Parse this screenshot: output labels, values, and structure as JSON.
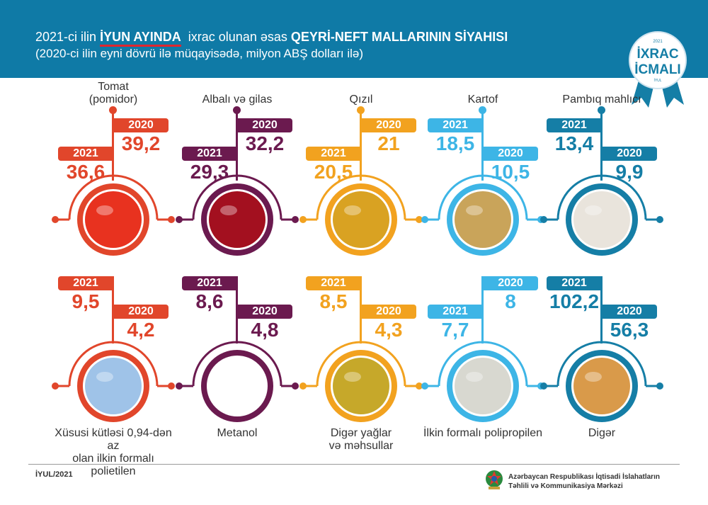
{
  "header": {
    "title_part1": "2021-ci ilin",
    "title_highlight": "İYUN AYINDA",
    "title_part2": "ixrac olunan əsas",
    "title_bold": "QEYRİ-NEFT MALLARININ SİYAHISI",
    "subtitle": "(2020-ci ilin eyni dövrü ilə müqayisədə, milyon ABŞ dolları ilə)",
    "background": "#0f7aa6"
  },
  "badge": {
    "year": "2021",
    "line1": "İXRAC",
    "line2": "İCMALI",
    "month": "İYUL"
  },
  "year_labels": {
    "current": "2021",
    "previous": "2020"
  },
  "items": [
    {
      "name": "Tomat (pomidor)",
      "name_lines": [
        "Tomat",
        "(pomidor)"
      ],
      "v2021": "36,6",
      "v2020": "39,2",
      "color": "#e1462b",
      "image": "tomato",
      "image_color": "#e8321f",
      "row": 1
    },
    {
      "name": "Albalı və gilas",
      "name_lines": [
        "Albalı və gilas"
      ],
      "v2021": "29,3",
      "v2020": "32,2",
      "color": "#6b1a4f",
      "image": "cherries",
      "image_color": "#a3101f",
      "row": 1
    },
    {
      "name": "Qızıl",
      "name_lines": [
        "Qızıl"
      ],
      "v2021": "20,5",
      "v2020": "21",
      "color": "#f2a21f",
      "image": "gold-bars",
      "image_color": "#d9a222",
      "row": 1
    },
    {
      "name": "Kartof",
      "name_lines": [
        "Kartof"
      ],
      "v2021": "18,5",
      "v2020": "10,5",
      "color": "#3db5e6",
      "image": "potatoes",
      "image_color": "#c9a45a",
      "row": 1
    },
    {
      "name": "Pambıq mahlıcı",
      "name_lines": [
        "Pambıq mahlıcı"
      ],
      "v2021": "13,4",
      "v2020": "9,9",
      "color": "#157ea6",
      "image": "cotton",
      "image_color": "#e9e4dc",
      "row": 1
    },
    {
      "name": "Xüsusi kütləsi 0,94-dən az olan ilkin formalı polietilen",
      "name_lines": [
        "Xüsusi kütləsi 0,94-dən az",
        "olan ilkin formalı polietilen"
      ],
      "v2021": "9,5",
      "v2020": "4,2",
      "color": "#e1462b",
      "image": "polyethylene-granules",
      "image_color": "#9fc3e8",
      "row": 2
    },
    {
      "name": "Metanol",
      "name_lines": [
        "Metanol"
      ],
      "v2021": "8,6",
      "v2020": "4,8",
      "color": "#6b1a4f",
      "image": "molecule",
      "image_color": "#ffffff",
      "row": 2
    },
    {
      "name": "Digər yağlar və məhsullar",
      "name_lines": [
        "Digər yağlar",
        "və məhsullar"
      ],
      "v2021": "8,5",
      "v2020": "4,3",
      "color": "#f2a21f",
      "image": "oil-bottle",
      "image_color": "#c6a82a",
      "row": 2
    },
    {
      "name": "İlkin formalı polipropilen",
      "name_lines": [
        "İlkin formalı polipropilen"
      ],
      "v2021": "7,7",
      "v2020": "8",
      "color": "#3db5e6",
      "image": "polypropylene-granules",
      "image_color": "#d8d8d0",
      "row": 2
    },
    {
      "name": "Digər",
      "name_lines": [
        "Digər"
      ],
      "v2021": "102,2",
      "v2020": "56,3",
      "color": "#157ea6",
      "image": "containers",
      "image_color": "#d99a4a",
      "row": 2
    }
  ],
  "footer": {
    "date": "İYUL/2021",
    "org_line1": "Azərbaycan Respublikası İqtisadi İslahatların",
    "org_line2": "Təhlili və Kommunikasiya Mərkəzi"
  }
}
